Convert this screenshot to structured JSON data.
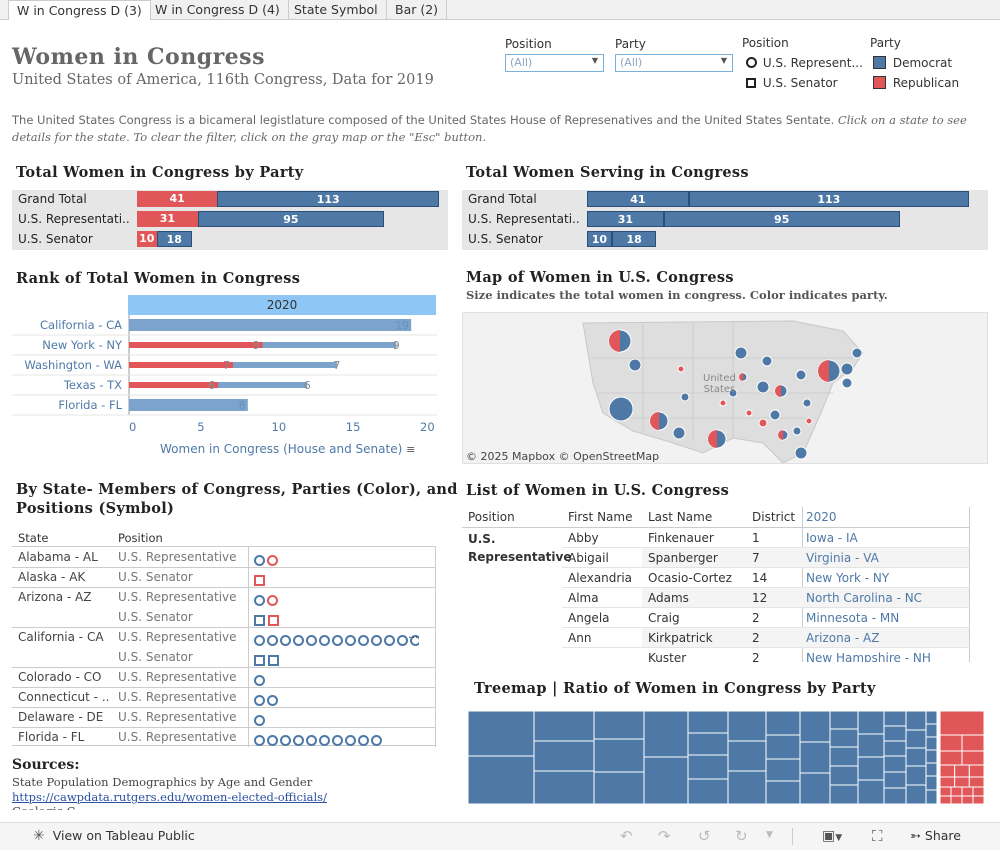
{
  "tabs": [
    "W in Congress D (3)",
    "W in Congress D (4)",
    "State Symbol",
    "Bar (2)"
  ],
  "header": {
    "title": "Women  in  Congress",
    "subtitle": "United States of America, 116th Congress, Data for 2019",
    "desc_plain": "The United States Congress is a bicameral legistlature composed of the United States House of Represenatives and the United States Sentate.",
    "desc_italic": "Click on a state to see details for the state. To clear the filter, click on the gray map or the \"Esc\" button."
  },
  "filters": {
    "position_label": "Position",
    "position_value": "(All)",
    "party_label": "Party",
    "party_value": "(All)"
  },
  "legend_position": {
    "title": "Position",
    "items": [
      "U.S. Represent...",
      "U.S. Senator"
    ]
  },
  "legend_party": {
    "title": "Party",
    "items": [
      "Democrat",
      "Republican"
    ],
    "colors": {
      "Democrat": "#4e79a7",
      "Republican": "#e15759"
    }
  },
  "party_chart": {
    "title": "Total Women in Congress by Party",
    "rows": [
      {
        "label": "Grand Total",
        "rep": 41,
        "dem": 113
      },
      {
        "label": "U.S. Representati..",
        "rep": 31,
        "dem": 95
      },
      {
        "label": "U.S. Senator",
        "rep": 10,
        "dem": 18
      }
    ]
  },
  "serving_chart": {
    "title": "Total Women Serving in Congress",
    "rows": [
      {
        "label": "Grand Total",
        "a": 41,
        "b": 113
      },
      {
        "label": "U.S. Representati..",
        "a": 31,
        "b": 95
      },
      {
        "label": "U.S. Senator",
        "a": 10,
        "b": 18
      }
    ]
  },
  "rank_chart": {
    "title": "Rank of Total Women in Congress",
    "header": "2020",
    "xlabel": "Women in Congress (House and Senate)",
    "ticks": [
      0,
      5,
      10,
      15,
      20
    ],
    "xlim": [
      0,
      20
    ],
    "rows": [
      {
        "state": "California - CA",
        "total": 19,
        "rep": null
      },
      {
        "state": "New York - NY",
        "total": 18,
        "rep": 9,
        "label": 9
      },
      {
        "state": "Washington - WA",
        "total": 14,
        "rep": 7,
        "label": 7
      },
      {
        "state": "Texas - TX",
        "total": 12,
        "rep": 6,
        "label": 6
      },
      {
        "state": "Florida - FL",
        "total": 8,
        "rep": null
      }
    ]
  },
  "map": {
    "title": "Map of Women in U.S. Congress",
    "subtitle": "Size indicates the total women in congress. Color indicates party.",
    "center_label_1": "United",
    "center_label_2": "States",
    "credit": "© 2025 Mapbox  © OpenStreetMap"
  },
  "state_table": {
    "title_1": "By State- Members of Congress, Parties (Color), and",
    "title_2": "Positions (Symbol)",
    "col_state": "State",
    "col_position": "Position",
    "rows": [
      {
        "state": "Alabama - AL",
        "position": "U.S. Representative",
        "marks": [
          [
            "c",
            "d"
          ],
          [
            "c",
            "r"
          ]
        ]
      },
      {
        "state": "Alaska - AK",
        "position": "U.S. Senator",
        "marks": [
          [
            "s",
            "r"
          ]
        ]
      },
      {
        "state": "Arizona - AZ",
        "position": "U.S. Representative",
        "marks": [
          [
            "c",
            "d"
          ],
          [
            "c",
            "r"
          ]
        ]
      },
      {
        "state": "",
        "position": "U.S. Senator",
        "marks": [
          [
            "s",
            "d"
          ],
          [
            "s",
            "r"
          ]
        ]
      },
      {
        "state": "California - CA",
        "position": "U.S. Representative",
        "marks": [
          [
            "c",
            "d"
          ],
          [
            "c",
            "d"
          ],
          [
            "c",
            "d"
          ],
          [
            "c",
            "d"
          ],
          [
            "c",
            "d"
          ],
          [
            "c",
            "d"
          ],
          [
            "c",
            "d"
          ],
          [
            "c",
            "d"
          ],
          [
            "c",
            "d"
          ],
          [
            "c",
            "d"
          ],
          [
            "c",
            "d"
          ],
          [
            "c",
            "d"
          ],
          [
            "c",
            "d"
          ],
          [
            "c",
            "d"
          ],
          [
            "c",
            "d"
          ],
          [
            "c",
            "d"
          ]
        ],
        "more": "..."
      },
      {
        "state": "",
        "position": "U.S. Senator",
        "marks": [
          [
            "s",
            "d"
          ],
          [
            "s",
            "d"
          ]
        ]
      },
      {
        "state": "Colorado - CO",
        "position": "U.S. Representative",
        "marks": [
          [
            "c",
            "d"
          ]
        ]
      },
      {
        "state": "Connecticut - ..",
        "position": "U.S. Representative",
        "marks": [
          [
            "c",
            "d"
          ],
          [
            "c",
            "d"
          ]
        ]
      },
      {
        "state": "Delaware - DE",
        "position": "U.S. Representative",
        "marks": [
          [
            "c",
            "d"
          ]
        ]
      },
      {
        "state": "Florida - FL",
        "position": "U.S. Representative",
        "marks": [
          [
            "c",
            "d"
          ],
          [
            "c",
            "d"
          ],
          [
            "c",
            "d"
          ],
          [
            "c",
            "d"
          ],
          [
            "c",
            "d"
          ],
          [
            "c",
            "d"
          ],
          [
            "c",
            "d"
          ],
          [
            "c",
            "d"
          ],
          [
            "c",
            "d"
          ],
          [
            "c",
            "d"
          ]
        ]
      }
    ]
  },
  "sources": {
    "title": "Sources:",
    "line1": "State Population Demographics by Age and Gender",
    "link": "https://cawpdata.rutgers.edu/women-elected-officials/",
    "line3": "Geologic C..."
  },
  "women_list": {
    "title": "List of Women in U.S. Congress",
    "headers": [
      "Position",
      "First Name",
      "Last Name",
      "District",
      "2020"
    ],
    "position": [
      "U.S.",
      "Representative"
    ],
    "rows": [
      {
        "first": "Abby",
        "last": "Finkenauer",
        "district": "1",
        "state": "Iowa - IA"
      },
      {
        "first": "Abigail",
        "last": "Spanberger",
        "district": "7",
        "state": "Virginia - VA"
      },
      {
        "first": "Alexandria",
        "last": "Ocasio-Cortez",
        "district": "14",
        "state": "New York - NY"
      },
      {
        "first": "Alma",
        "last": "Adams",
        "district": "12",
        "state": "North Carolina - NC"
      },
      {
        "first": "Angela",
        "last": "Craig",
        "district": "2",
        "state": "Minnesota - MN"
      },
      {
        "first": "Ann",
        "last": "Kirkpatrick",
        "district": "2",
        "state": "Arizona - AZ"
      },
      {
        "first": "",
        "last": "Kuster",
        "district": "2",
        "state": "New Hampshire - NH"
      }
    ]
  },
  "treemap": {
    "title": "Treemap | Ratio of Women in Congress by Party",
    "dem_share": 0.91
  },
  "footer": {
    "view_label": "View on Tableau Public",
    "share_label": "Share"
  }
}
